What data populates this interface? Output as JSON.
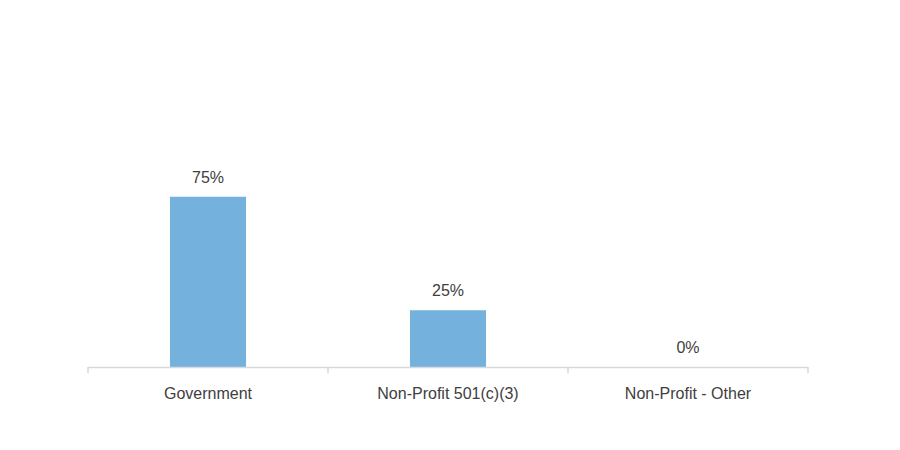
{
  "chart_data": {
    "type": "bar",
    "categories": [
      "Government",
      "Non-Profit 501(c)(3)",
      "Non-Profit - Other"
    ],
    "values": [
      75,
      25,
      0
    ],
    "value_labels": [
      "75%",
      "25%",
      "0%"
    ],
    "data_labels": true,
    "color": "#74b1dd",
    "ylim": [
      0,
      100
    ],
    "grid": false,
    "tick_labels": "x"
  }
}
